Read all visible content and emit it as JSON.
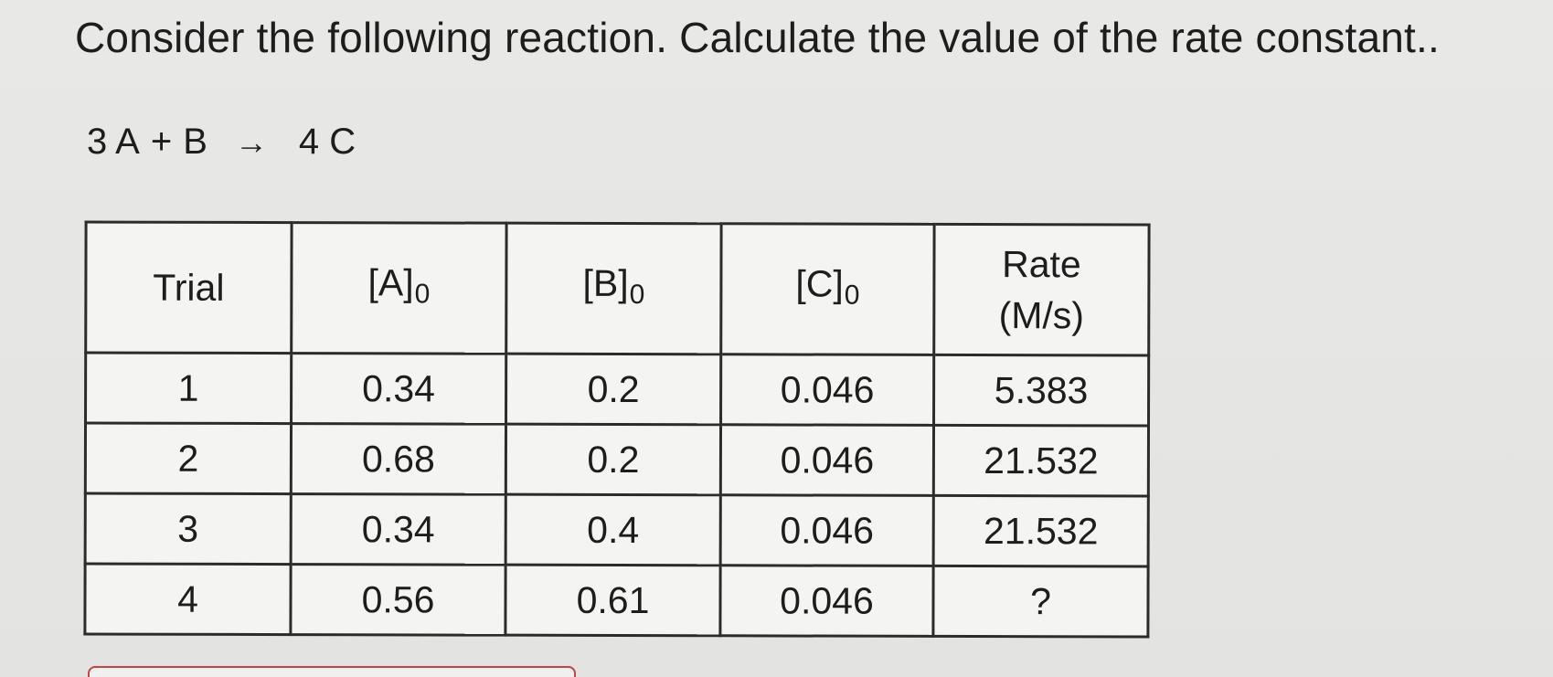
{
  "question": "Consider the following reaction. Calculate the value of the rate constant..",
  "reaction": {
    "reactant_a": "3 A",
    "plus": "+",
    "reactant_b": "B",
    "arrow": "→",
    "product": "4 C"
  },
  "table": {
    "headers": {
      "trial": "Trial",
      "a_label": "[A]",
      "a_sub": "0",
      "b_label": "[B]",
      "b_sub": "0",
      "c_label": "[C]",
      "c_sub": "0",
      "rate_line1": "Rate",
      "rate_line2": "(M/s)"
    },
    "rows": [
      [
        "1",
        "0.34",
        "0.2",
        "0.046",
        "5.383"
      ],
      [
        "2",
        "0.68",
        "0.2",
        "0.046",
        "21.532"
      ],
      [
        "3",
        "0.34",
        "0.4",
        "0.046",
        "21.532"
      ],
      [
        "4",
        "0.56",
        "0.61",
        "0.046",
        "?"
      ]
    ]
  },
  "colors": {
    "background": "#e6e6e4",
    "table_border": "#2b2b2b",
    "answer_box_border": "#c9414a"
  }
}
